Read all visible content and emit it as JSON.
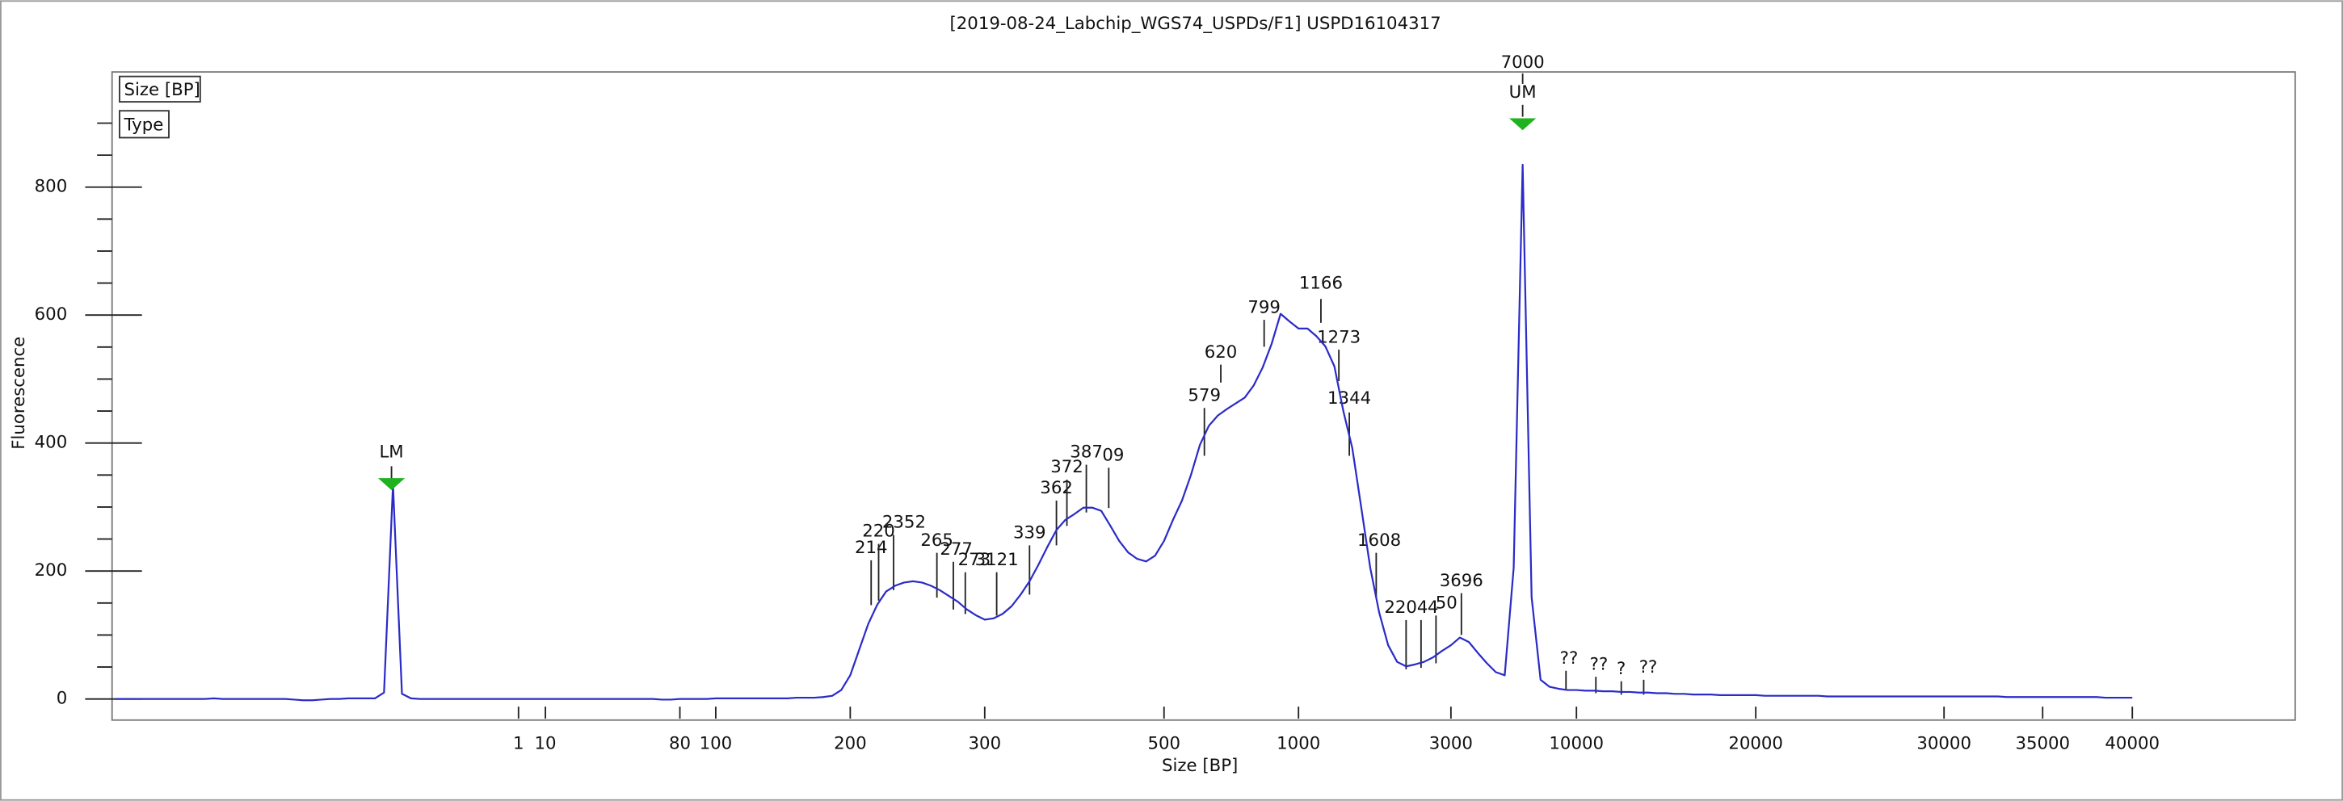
{
  "chart_data": {
    "type": "line",
    "title": "[2019-08-24_Labchip_WGS74_USPDs/F1] USPD16104317",
    "x_label": "Size [BP]",
    "y_label": "Fluorescence",
    "legend_boxes": [
      "Size [BP]",
      "Type"
    ],
    "color": "#2b2bc8",
    "marker_color": "#1fb21f",
    "ylim": [
      -33,
      980
    ],
    "yticks": [
      0,
      200,
      400,
      600,
      800
    ],
    "yminorticks": [
      50,
      100,
      150,
      250,
      300,
      350,
      450,
      500,
      550,
      650,
      700,
      750,
      850,
      900
    ],
    "categories": [
      null,
      null,
      null,
      null,
      null,
      null,
      null,
      null,
      null,
      null,
      null,
      null,
      null,
      null,
      null,
      null,
      null,
      null,
      null,
      null,
      null,
      null,
      null,
      null,
      null,
      null,
      null,
      null,
      null,
      null,
      null,
      null,
      null,
      null,
      null,
      null,
      null,
      null,
      null,
      null,
      null,
      null,
      null,
      null,
      null,
      "1",
      null,
      null,
      "10",
      null,
      null,
      null,
      null,
      null,
      null,
      null,
      null,
      null,
      null,
      null,
      null,
      null,
      null,
      "80",
      null,
      null,
      null,
      "100",
      null,
      null,
      null,
      null,
      null,
      null,
      null,
      null,
      null,
      null,
      null,
      null,
      null,
      null,
      "200",
      null,
      null,
      null,
      null,
      null,
      null,
      null,
      null,
      null,
      null,
      null,
      null,
      null,
      null,
      "300",
      null,
      null,
      null,
      null,
      null,
      null,
      null,
      null,
      null,
      null,
      null,
      null,
      null,
      null,
      null,
      null,
      null,
      null,
      null,
      "500",
      null,
      null,
      null,
      null,
      null,
      null,
      null,
      null,
      null,
      null,
      null,
      null,
      null,
      null,
      "1000",
      null,
      null,
      null,
      null,
      null,
      null,
      null,
      null,
      null,
      null,
      null,
      null,
      null,
      null,
      null,
      null,
      "3000",
      null,
      null,
      null,
      null,
      null,
      null,
      null,
      null,
      null,
      null,
      null,
      null,
      null,
      "10000",
      null,
      null,
      null,
      null,
      null,
      null,
      null,
      null,
      null,
      null,
      null,
      null,
      null,
      null,
      null,
      null,
      null,
      null,
      null,
      "20000",
      null,
      null,
      null,
      null,
      null,
      null,
      null,
      null,
      null,
      null,
      null,
      null,
      null,
      null,
      null,
      null,
      null,
      null,
      null,
      null,
      "30000",
      null,
      null,
      null,
      null,
      null,
      null,
      null,
      null,
      null,
      null,
      "35000",
      null,
      null,
      null,
      null,
      null,
      null,
      null,
      null,
      null,
      "40000"
    ],
    "values": [
      0,
      0,
      0,
      0,
      0,
      0,
      0,
      0,
      0,
      0,
      0,
      1,
      0,
      0,
      0,
      0,
      0,
      0,
      0,
      0,
      -1,
      -2,
      -2,
      -1,
      0,
      0,
      1,
      1,
      1,
      1,
      10,
      335,
      8,
      1,
      0,
      0,
      0,
      0,
      0,
      0,
      0,
      0,
      0,
      0,
      0,
      0,
      0,
      0,
      0,
      0,
      0,
      0,
      0,
      0,
      0,
      0,
      0,
      0,
      0,
      0,
      0,
      -1,
      -1,
      0,
      0,
      0,
      0,
      1,
      1,
      1,
      1,
      1,
      1,
      1,
      1,
      1,
      2,
      2,
      2,
      3,
      5,
      14,
      37,
      77,
      117,
      147,
      168,
      177,
      182,
      184,
      182,
      177,
      170,
      161,
      152,
      140,
      131,
      124,
      126,
      133,
      145,
      163,
      184,
      210,
      238,
      264,
      280,
      289,
      299,
      299,
      294,
      271,
      247,
      229,
      219,
      215,
      224,
      247,
      280,
      310,
      350,
      397,
      427,
      443,
      453,
      462,
      471,
      490,
      518,
      555,
      602,
      590,
      579,
      579,
      567,
      551,
      520,
      450,
      392,
      299,
      205,
      135,
      84,
      58,
      51,
      54,
      58,
      65,
      75,
      84,
      96,
      89,
      72,
      56,
      42,
      37,
      205,
      835,
      159,
      30,
      19,
      16,
      14,
      14,
      13,
      13,
      12,
      12,
      11,
      11,
      10,
      10,
      9,
      9,
      8,
      8,
      7,
      7,
      7,
      6,
      6,
      6,
      6,
      6,
      5,
      5,
      5,
      5,
      5,
      5,
      5,
      4,
      4,
      4,
      4,
      4,
      4,
      4,
      4,
      4,
      4,
      4,
      4,
      4,
      4,
      4,
      4,
      4,
      4,
      4,
      4,
      3,
      3,
      3,
      3,
      3,
      3,
      3,
      3,
      3,
      3,
      3,
      2,
      2,
      2,
      2
    ],
    "annotations": [
      "LM",
      "UM",
      "7000",
      "214",
      "220",
      "2352",
      "265",
      "277",
      "273",
      "3121",
      "339",
      "362",
      "372",
      "387",
      "09",
      "579",
      "620",
      "799",
      "1166",
      "1273",
      "1344",
      "1608",
      "2204",
      "4",
      "50",
      "3696",
      "??",
      "??",
      "?",
      "??"
    ]
  }
}
